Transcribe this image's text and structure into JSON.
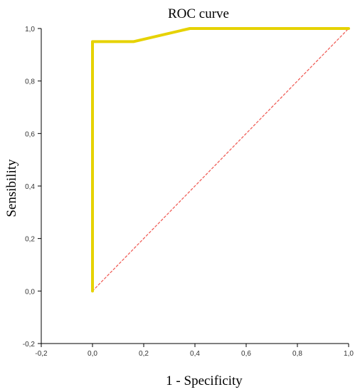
{
  "chart_data": {
    "type": "line",
    "title": "ROC curve",
    "xlabel": "1 - Specificity",
    "ylabel": "Sensibility",
    "xlim": [
      -0.2,
      1.0
    ],
    "ylim": [
      -0.2,
      1.0
    ],
    "grid": false,
    "x_ticks": [
      "-0,2",
      "0,0",
      "0,2",
      "0,4",
      "0,6",
      "0,8",
      "1,0"
    ],
    "y_ticks": [
      "-0,2",
      "0,0",
      "0,2",
      "0,4",
      "0,6",
      "0,8",
      "1,0"
    ],
    "series": [
      {
        "color": "#e6d200",
        "style": "solid",
        "points": [
          {
            "x": 0.0,
            "y": 0.0
          },
          {
            "x": 0.0,
            "y": 0.95
          },
          {
            "x": 0.16,
            "y": 0.95
          },
          {
            "x": 0.38,
            "y": 1.0
          },
          {
            "x": 1.0,
            "y": 1.0
          }
        ]
      },
      {
        "color": "#f0605a",
        "style": "dashed",
        "points": [
          {
            "x": 0.0,
            "y": 0.0
          },
          {
            "x": 1.0,
            "y": 1.0
          }
        ]
      }
    ]
  }
}
